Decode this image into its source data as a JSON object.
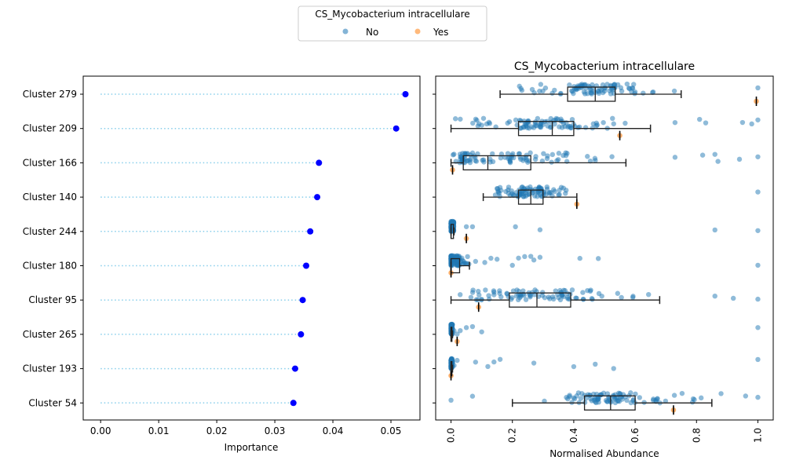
{
  "legend": {
    "title": "CS_Mycobacterium intracellulare",
    "entries": [
      {
        "label": "No",
        "color": "#1f77b4"
      },
      {
        "label": "Yes",
        "color": "#ff7f0e"
      }
    ],
    "placement": "top-center"
  },
  "chart_data": [
    {
      "type": "scatter",
      "subtype": "lollipop",
      "title": "",
      "xlabel": "Importance",
      "ylabel": "",
      "xlim": [
        -0.003,
        0.055
      ],
      "xticks": [
        "0.00",
        "0.01",
        "0.02",
        "0.03",
        "0.04",
        "0.05"
      ],
      "categories": [
        "Cluster 279",
        "Cluster 209",
        "Cluster 166",
        "Cluster 140",
        "Cluster 244",
        "Cluster 180",
        "Cluster 95",
        "Cluster 265",
        "Cluster 193",
        "Cluster 54"
      ],
      "values": [
        0.0525,
        0.0509,
        0.0376,
        0.0373,
        0.0361,
        0.0354,
        0.0348,
        0.0345,
        0.0335,
        0.0332
      ],
      "marker_color": "#0000ff",
      "stem_color": "#87ceeb",
      "grid": false
    },
    {
      "type": "box",
      "title": "CS_Mycobacterium intracellulare",
      "xlabel": "Normalised Abundance",
      "ylabel": "",
      "xlim": [
        -0.05,
        1.05
      ],
      "xticks": [
        "0.0",
        "0.2",
        "0.4",
        "0.6",
        "0.8",
        "1.0"
      ],
      "categories": [
        "Cluster 279",
        "Cluster 209",
        "Cluster 166",
        "Cluster 140",
        "Cluster 244",
        "Cluster 180",
        "Cluster 95",
        "Cluster 265",
        "Cluster 193",
        "Cluster 54"
      ],
      "box_series": "No",
      "boxes": [
        {
          "whislo": 0.16,
          "q1": 0.38,
          "med": 0.47,
          "q3": 0.535,
          "whishi": 0.75
        },
        {
          "whislo": 0.0,
          "q1": 0.22,
          "med": 0.33,
          "q3": 0.4,
          "whishi": 0.65
        },
        {
          "whislo": 0.0,
          "q1": 0.04,
          "med": 0.12,
          "q3": 0.26,
          "whishi": 0.57
        },
        {
          "whislo": 0.105,
          "q1": 0.22,
          "med": 0.26,
          "q3": 0.3,
          "whishi": 0.41
        },
        {
          "whislo": 0.0,
          "q1": 0.0,
          "med": 0.0,
          "q3": 0.008,
          "whishi": 0.01
        },
        {
          "whislo": 0.0,
          "q1": 0.0,
          "med": 0.0,
          "q3": 0.028,
          "whishi": 0.06
        },
        {
          "whislo": 0.0,
          "q1": 0.19,
          "med": 0.28,
          "q3": 0.39,
          "whishi": 0.68
        },
        {
          "whislo": 0.0,
          "q1": 0.0,
          "med": 0.0,
          "q3": 0.003,
          "whishi": 0.005
        },
        {
          "whislo": 0.0,
          "q1": 0.0,
          "med": 0.0,
          "q3": 0.003,
          "whishi": 0.005
        },
        {
          "whislo": 0.2,
          "q1": 0.435,
          "med": 0.52,
          "q3": 0.6,
          "whishi": 0.85
        }
      ],
      "yes_values": [
        0.995,
        0.55,
        0.005,
        0.41,
        0.05,
        0.0,
        0.09,
        0.02,
        0.0,
        0.725
      ],
      "no_outliers": [
        [
          1.0
        ],
        [
          0.73,
          0.81,
          0.83,
          0.95,
          0.98,
          1.0
        ],
        [
          0.73,
          0.82,
          0.86,
          0.87,
          0.94,
          1.0
        ],
        [
          1.0
        ],
        [
          0.05,
          0.07,
          0.21,
          0.29,
          0.86,
          1.0
        ],
        [
          0.08,
          0.11,
          0.13,
          0.15,
          0.2,
          0.22,
          0.24,
          0.26,
          0.27,
          0.29,
          0.42,
          0.48,
          1.0
        ],
        [
          0.86,
          0.92,
          1.0
        ],
        [
          0.01,
          0.02,
          0.03,
          0.05,
          0.07,
          0.1,
          1.0
        ],
        [
          0.01,
          0.02,
          0.08,
          0.12,
          0.14,
          0.16,
          0.27,
          0.4,
          0.47,
          0.53,
          1.0
        ],
        [
          0.0,
          0.07,
          0.88,
          0.96,
          1.0
        ]
      ],
      "grid": false
    }
  ]
}
